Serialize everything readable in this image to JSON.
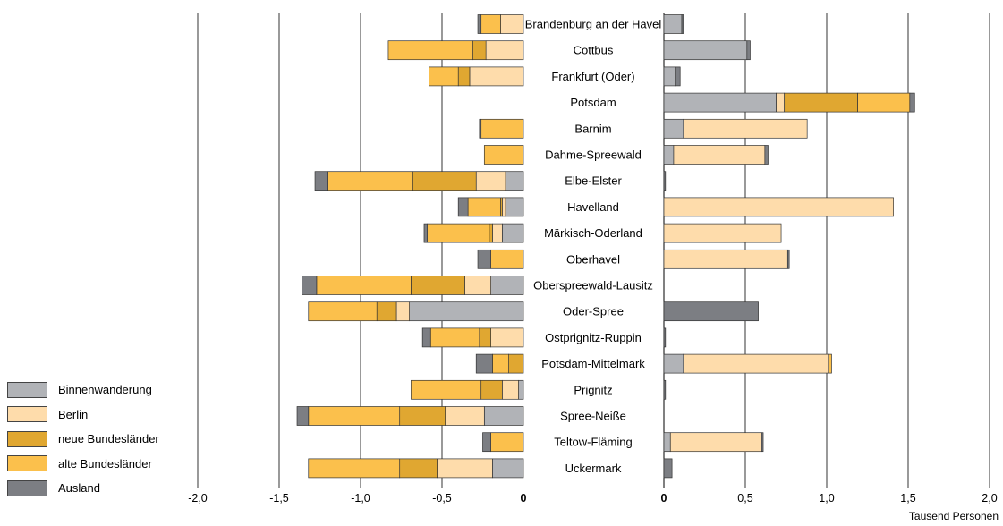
{
  "chart_data": {
    "type": "bar",
    "orientation": "horizontal",
    "stacked": true,
    "unit_label": "Tausend Personen",
    "categories": [
      "Brandenburg an der Havel",
      "Cottbus",
      "Frankfurt (Oder)",
      "Potsdam",
      "Barnim",
      "Dahme-Spreewald",
      "Elbe-Elster",
      "Havelland",
      "Märkisch-Oderland",
      "Oberhavel",
      "Oberspreewald-Lausitz",
      "Oder-Spree",
      "Ostprignitz-Ruppin",
      "Potsdam-Mittelmark",
      "Prignitz",
      "Spree-Neiße",
      "Teltow-Fläming",
      "Uckermark"
    ],
    "series_colors": {
      "Binnenwanderung": "#b1b3b7",
      "Berlin": "#fedcab",
      "neue Bundesländer": "#e0a731",
      "alte Bundesländer": "#fbc04c",
      "Ausland": "#7c7e83"
    },
    "left_panel": {
      "xlim": [
        -2.0,
        0
      ],
      "ticks": [
        "-2,0",
        "-1,5",
        "-1,0",
        "-0,5",
        "0"
      ],
      "series": [
        {
          "name": "Binnenwanderung",
          "values": [
            0,
            0,
            0,
            0,
            0,
            0,
            -0.11,
            -0.11,
            -0.13,
            0,
            -0.2,
            -0.7,
            0,
            0,
            -0.03,
            -0.24,
            0,
            -0.19
          ]
        },
        {
          "name": "Berlin",
          "values": [
            -0.14,
            -0.23,
            -0.33,
            0,
            0,
            0,
            -0.18,
            -0.02,
            -0.06,
            0,
            -0.16,
            -0.08,
            -0.2,
            0,
            -0.1,
            -0.24,
            0,
            -0.34
          ]
        },
        {
          "name": "neue Bundesländer",
          "values": [
            0,
            -0.08,
            -0.07,
            0,
            0,
            0,
            -0.39,
            -0.01,
            -0.02,
            0,
            -0.33,
            -0.12,
            -0.07,
            -0.09,
            -0.13,
            -0.28,
            0,
            -0.23
          ]
        },
        {
          "name": "alte Bundesländer",
          "values": [
            -0.12,
            -0.52,
            -0.18,
            0,
            -0.26,
            -0.24,
            -0.52,
            -0.2,
            -0.38,
            -0.2,
            -0.58,
            -0.42,
            -0.3,
            -0.1,
            -0.43,
            -0.56,
            -0.2,
            -0.56
          ]
        },
        {
          "name": "Ausland",
          "values": [
            -0.02,
            0,
            0,
            0,
            -0.01,
            0,
            -0.08,
            -0.06,
            -0.02,
            -0.08,
            -0.09,
            0,
            -0.05,
            -0.1,
            0,
            -0.07,
            -0.05,
            0
          ]
        }
      ]
    },
    "right_panel": {
      "xlim": [
        0,
        2.0
      ],
      "ticks": [
        "0",
        "0,5",
        "1,0",
        "1,5",
        "2,0"
      ],
      "series": [
        {
          "name": "Binnenwanderung",
          "values": [
            0.11,
            0.51,
            0.07,
            0.69,
            0.12,
            0.06,
            0,
            0,
            0,
            0,
            0,
            0,
            0,
            0.12,
            0,
            0,
            0.04,
            0
          ]
        },
        {
          "name": "Berlin",
          "values": [
            0,
            0,
            0,
            0.05,
            0.76,
            0.56,
            0,
            1.41,
            0.72,
            0.76,
            0,
            0,
            0,
            0.89,
            0,
            0,
            0.56,
            0
          ]
        },
        {
          "name": "neue Bundesländer",
          "values": [
            0,
            0,
            0,
            0.45,
            0,
            0,
            0,
            0,
            0,
            0,
            0,
            0,
            0,
            0,
            0,
            0,
            0,
            0
          ]
        },
        {
          "name": "alte Bundesländer",
          "values": [
            0,
            0,
            0,
            0.32,
            0,
            0,
            0,
            0,
            0,
            0,
            0,
            0,
            0,
            0.02,
            0,
            0,
            0,
            0
          ]
        },
        {
          "name": "Ausland",
          "values": [
            0.01,
            0.02,
            0.03,
            0.03,
            0,
            0.02,
            0.01,
            0,
            0,
            0.01,
            0,
            0.58,
            0.01,
            0,
            0.01,
            0,
            0.01,
            0.05
          ]
        }
      ]
    },
    "legend": {
      "position": "bottom-left",
      "entries": [
        "Binnenwanderung",
        "Berlin",
        "neue Bundesländer",
        "alte Bundesländer",
        "Ausland"
      ]
    }
  }
}
